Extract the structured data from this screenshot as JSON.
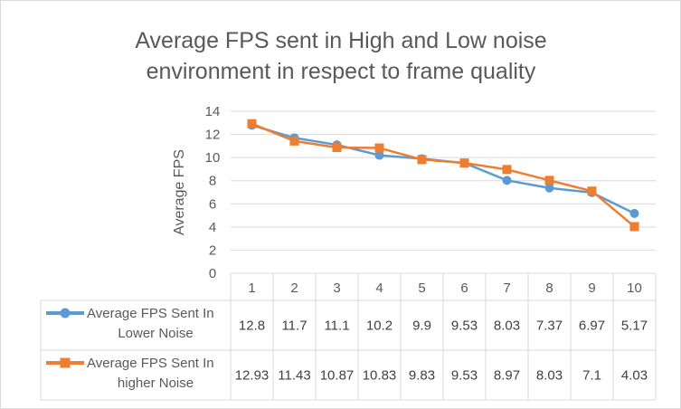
{
  "chart_data": {
    "type": "line",
    "title": "Average FPS sent in High and Low noise environment in respect to frame quality",
    "title_lines": [
      "Average FPS sent in High and Low noise",
      "environment in respect to frame quality"
    ],
    "xlabel": "",
    "ylabel": "Average  FPS",
    "categories": [
      "1",
      "2",
      "3",
      "4",
      "5",
      "6",
      "7",
      "8",
      "9",
      "10"
    ],
    "ylim": [
      0,
      14
    ],
    "yticks": [
      0,
      2,
      4,
      6,
      8,
      10,
      12,
      14
    ],
    "grid": true,
    "legend": "data-table-left",
    "series": [
      {
        "name": "Average FPS Sent In Lower Noise",
        "name_lines": [
          "Average FPS Sent In",
          "Lower Noise"
        ],
        "color": "#5b9bd5",
        "marker": "circle",
        "values": [
          12.8,
          11.7,
          11.1,
          10.2,
          9.9,
          9.53,
          8.03,
          7.37,
          6.97,
          5.17
        ],
        "labels": [
          "12.8",
          "11.7",
          "11.1",
          "10.2",
          "9.9",
          "9.53",
          "8.03",
          "7.37",
          "6.97",
          "5.17"
        ]
      },
      {
        "name": "Average FPS Sent In higher Noise",
        "name_lines": [
          "Average FPS Sent In",
          "higher Noise"
        ],
        "color": "#ed7d31",
        "marker": "square",
        "values": [
          12.93,
          11.43,
          10.87,
          10.83,
          9.83,
          9.53,
          8.97,
          8.03,
          7.1,
          4.03
        ],
        "labels": [
          "12.93",
          "11.43",
          "10.87",
          "10.83",
          "9.83",
          "9.53",
          "8.97",
          "8.03",
          "7.1",
          "4.03"
        ]
      }
    ]
  }
}
